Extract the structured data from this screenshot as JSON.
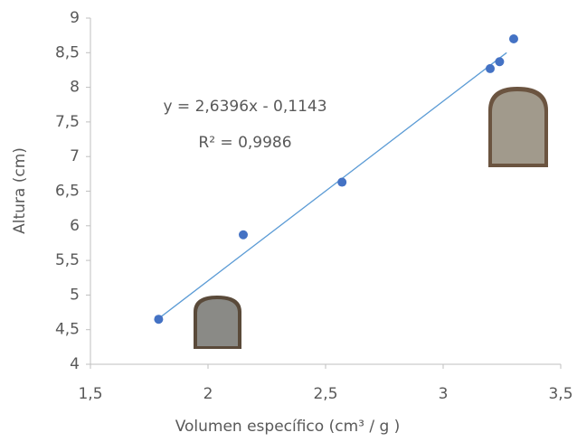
{
  "chart_data": {
    "type": "scatter",
    "x_label": "Volumen específico (cm³ / g )",
    "y_label": "Altura (cm)",
    "annotations": [
      "y = 2,6396x - 0,1143",
      "R² = 0,9986"
    ],
    "x": [
      1.79,
      2.15,
      2.57,
      3.2,
      3.24,
      3.3
    ],
    "values": [
      4.65,
      5.87,
      6.63,
      8.27,
      8.37,
      8.7
    ],
    "color": "#4472c4",
    "trendline": {
      "x": [
        1.79,
        3.27
      ],
      "values": [
        4.66,
        8.5
      ],
      "color": "#5b9bd5"
    },
    "xlim": [
      1.5,
      3.5
    ],
    "xticks": [
      {
        "value": 1.5,
        "label": "1,5"
      },
      2,
      {
        "value": 2.5,
        "label": "2,5"
      },
      3,
      {
        "value": 3.5,
        "label": "3,5"
      }
    ],
    "ylim": [
      4,
      9
    ],
    "yticks": [
      4,
      {
        "value": 4.5,
        "label": "4,5"
      },
      5,
      {
        "value": 5.5,
        "label": "5,5"
      },
      6,
      {
        "value": 6.5,
        "label": "6,5"
      },
      7,
      {
        "value": 7.5,
        "label": "7,5"
      },
      8,
      {
        "value": 8.5,
        "label": "8,5"
      },
      9
    ]
  }
}
